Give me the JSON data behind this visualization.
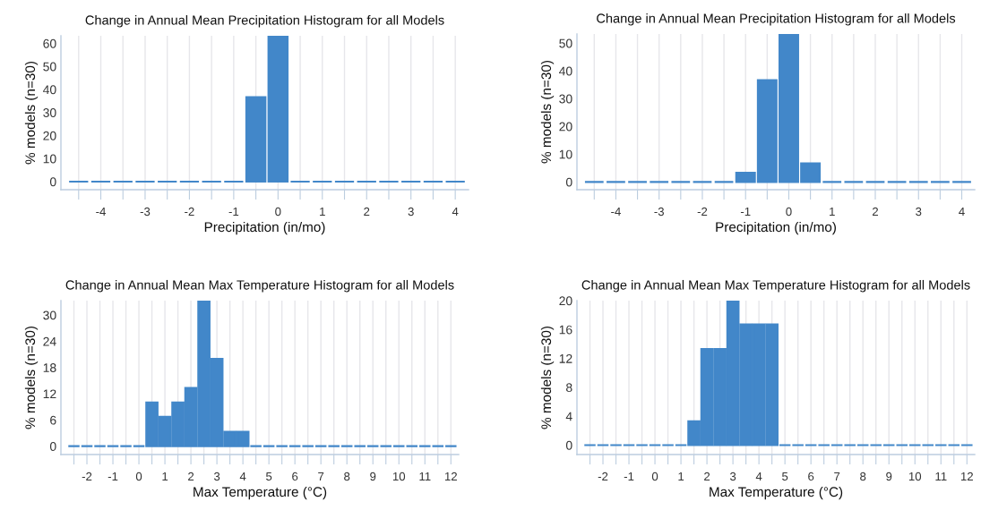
{
  "chart_data": [
    {
      "type": "histogram",
      "title": "Change in Annual Mean Precipitation Histogram for all Models",
      "xlabel": "Precipitation (in/mo)",
      "ylabel": "% models (n=30)",
      "color": "#4287c9",
      "grid": "x",
      "bins": [
        -4.75,
        -4.25,
        -3.75,
        -3.25,
        -2.75,
        -2.25,
        -1.75,
        -1.25,
        -0.75,
        -0.25,
        0.25,
        0.75,
        1.25,
        1.75,
        2.25,
        2.75,
        3.25,
        3.75,
        4.25
      ],
      "values": [
        0,
        0,
        0,
        0,
        0,
        0,
        0,
        0,
        36.7,
        63.3,
        0,
        0,
        0,
        0,
        0,
        0,
        0,
        0
      ],
      "xlim": [
        -4.9,
        4.3
      ],
      "ylim": [
        -3.5,
        63.3
      ],
      "yticks": [
        0,
        10,
        20,
        30,
        40,
        50,
        60
      ],
      "xticks": [
        {
          "value": -4.5,
          "label": null
        },
        -4,
        {
          "value": -3.5,
          "label": null
        },
        -3,
        {
          "value": -2.5,
          "label": null
        },
        -2,
        {
          "value": -1.5,
          "label": null
        },
        -1,
        {
          "value": -0.5,
          "label": null
        },
        0,
        {
          "value": 0.5,
          "label": null
        },
        1,
        {
          "value": 1.5,
          "label": null
        },
        2,
        {
          "value": 2.5,
          "label": null
        },
        3,
        {
          "value": 3.5,
          "label": null
        },
        4
      ]
    },
    {
      "type": "histogram",
      "title": "Change in Annual Mean Precipitation Histogram for all Models",
      "xlabel": "Precipitation (in/mo)",
      "ylabel": "% models (n=30)",
      "color": "#4287c9",
      "grid": "x",
      "bins": [
        -4.75,
        -4.25,
        -3.75,
        -3.25,
        -2.75,
        -2.25,
        -1.75,
        -1.25,
        -0.75,
        -0.25,
        0.25,
        0.75,
        1.25,
        1.75,
        2.25,
        2.75,
        3.25,
        3.75,
        4.25
      ],
      "values": [
        0,
        0,
        0,
        0,
        0,
        0,
        0,
        3.3,
        36.7,
        53.3,
        6.7,
        0,
        0,
        0,
        0,
        0,
        0,
        0
      ],
      "xlim": [
        -4.9,
        4.3
      ],
      "ylim": [
        -2.8,
        53.3
      ],
      "yticks": [
        0,
        10,
        20,
        30,
        40,
        50
      ],
      "xticks": [
        {
          "value": -4.5,
          "label": null
        },
        -4,
        {
          "value": -3.5,
          "label": null
        },
        -3,
        {
          "value": -2.5,
          "label": null
        },
        -2,
        {
          "value": -1.5,
          "label": null
        },
        -1,
        {
          "value": -0.5,
          "label": null
        },
        0,
        {
          "value": 0.5,
          "label": null
        },
        1,
        {
          "value": 1.5,
          "label": null
        },
        2,
        {
          "value": 2.5,
          "label": null
        },
        3,
        {
          "value": 3.5,
          "label": null
        },
        4
      ]
    },
    {
      "type": "histogram",
      "title": "Change in Annual Mean Max Temperature Histogram for all Models",
      "xlabel": "Max Temperature (°C)",
      "ylabel": "% models (n=30)",
      "color": "#4287c9",
      "grid": "x",
      "bins": [
        -2.75,
        -2.25,
        -1.75,
        -1.25,
        -0.75,
        -0.25,
        0.25,
        0.75,
        1.25,
        1.75,
        2.25,
        2.75,
        3.25,
        3.75,
        4.25,
        4.75,
        5.25,
        5.75,
        6.25,
        6.75,
        7.25,
        7.75,
        8.25,
        8.75,
        9.25,
        9.75,
        10.25,
        10.75,
        11.25,
        11.75,
        12.25
      ],
      "values": [
        0,
        0,
        0,
        0,
        0,
        0,
        10,
        6.7,
        10,
        13.3,
        33.3,
        20,
        3.3,
        3.3,
        0,
        0,
        0,
        0,
        0,
        0,
        0,
        0,
        0,
        0,
        0,
        0,
        0,
        0,
        0,
        0
      ],
      "xlim": [
        -3.0,
        12.3
      ],
      "ylim": [
        -1.9,
        33.3
      ],
      "yticks": [
        0,
        6,
        12,
        18,
        24,
        30
      ],
      "xticks": [
        {
          "value": -2.5,
          "label": null
        },
        -2,
        {
          "value": -1.5,
          "label": null
        },
        -1,
        {
          "value": -0.5,
          "label": null
        },
        0,
        {
          "value": 0.5,
          "label": null
        },
        1,
        {
          "value": 1.5,
          "label": null
        },
        2,
        {
          "value": 2.5,
          "label": null
        },
        3,
        {
          "value": 3.5,
          "label": null
        },
        4,
        {
          "value": 4.5,
          "label": null
        },
        5,
        {
          "value": 5.5,
          "label": null
        },
        6,
        {
          "value": 6.5,
          "label": null
        },
        7,
        {
          "value": 7.5,
          "label": null
        },
        8,
        {
          "value": 8.5,
          "label": null
        },
        9,
        {
          "value": 9.5,
          "label": null
        },
        10,
        {
          "value": 10.5,
          "label": null
        },
        11,
        {
          "value": 11.5,
          "label": null
        },
        12
      ]
    },
    {
      "type": "histogram",
      "title": "Change in Annual Mean Max Temperature Histogram for all Models",
      "xlabel": "Max Temperature (°C)",
      "ylabel": "% models (n=30)",
      "color": "#4287c9",
      "grid": "x",
      "bins": [
        -2.75,
        -2.25,
        -1.75,
        -1.25,
        -0.75,
        -0.25,
        0.25,
        0.75,
        1.25,
        1.75,
        2.25,
        2.75,
        3.25,
        3.75,
        4.25,
        4.75,
        5.25,
        5.75,
        6.25,
        6.75,
        7.25,
        7.75,
        8.25,
        8.75,
        9.25,
        9.75,
        10.25,
        10.75,
        11.25,
        11.75,
        12.25
      ],
      "values": [
        0,
        0,
        0,
        0,
        0,
        0,
        0,
        0,
        3.3,
        13.3,
        13.3,
        20,
        16.7,
        16.7,
        16.7,
        0,
        0,
        0,
        0,
        0,
        0,
        0,
        0,
        0,
        0,
        0,
        0,
        0,
        0,
        0
      ],
      "xlim": [
        -3.0,
        12.3
      ],
      "ylim": [
        -1.3,
        20
      ],
      "yticks": [
        0,
        4,
        8,
        12,
        16,
        20
      ],
      "xticks": [
        {
          "value": -2.5,
          "label": null
        },
        -2,
        {
          "value": -1.5,
          "label": null
        },
        -1,
        {
          "value": -0.5,
          "label": null
        },
        0,
        {
          "value": 0.5,
          "label": null
        },
        1,
        {
          "value": 1.5,
          "label": null
        },
        2,
        {
          "value": 2.5,
          "label": null
        },
        3,
        {
          "value": 3.5,
          "label": null
        },
        4,
        {
          "value": 4.5,
          "label": null
        },
        5,
        {
          "value": 5.5,
          "label": null
        },
        6,
        {
          "value": 6.5,
          "label": null
        },
        7,
        {
          "value": 7.5,
          "label": null
        },
        8,
        {
          "value": 8.5,
          "label": null
        },
        9,
        {
          "value": 9.5,
          "label": null
        },
        10,
        {
          "value": 10.5,
          "label": null
        },
        11,
        {
          "value": 11.5,
          "label": null
        },
        12
      ]
    }
  ]
}
